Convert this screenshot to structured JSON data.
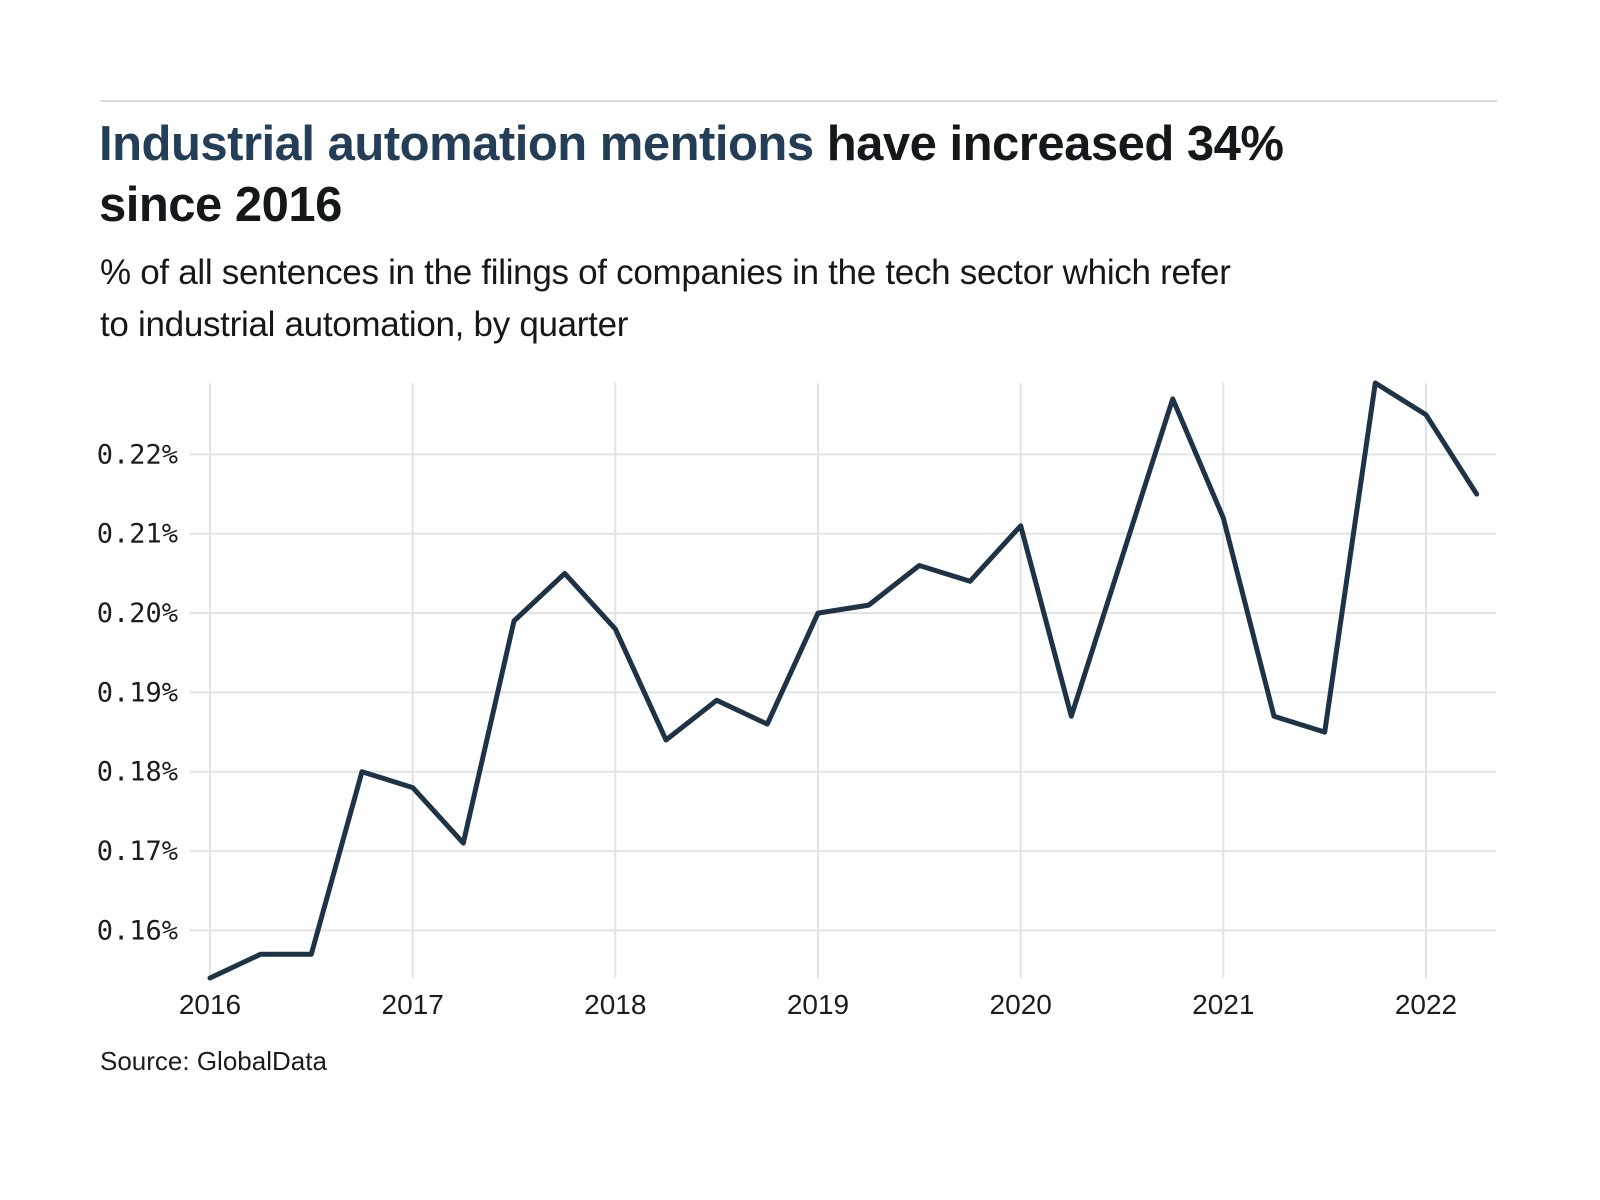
{
  "header": {
    "title_highlight": "Industrial automation mentions",
    "title_rest_line1": " have increased 34%",
    "title_line2": "since 2016",
    "subtitle_line1": "% of all sentences in the filings of companies in the tech sector which refer",
    "subtitle_line2": "to industrial automation, by quarter"
  },
  "footer": {
    "source": "Source: GlobalData"
  },
  "colors": {
    "title_highlight": "#253e57",
    "body_text": "#15181a",
    "line": "#1f3347",
    "gridline": "#e3e3e3",
    "divider": "#dcdcdc",
    "background": "#ffffff"
  },
  "chart_data": {
    "type": "line",
    "title": "Industrial automation mentions have increased 34% since 2016",
    "subtitle": "% of all sentences in the filings of companies in the tech sector which refer to industrial automation, by quarter",
    "source": "Source: GlobalData",
    "categories": [
      "2016 Q1",
      "2016 Q2",
      "2016 Q3",
      "2016 Q4",
      "2017 Q1",
      "2017 Q2",
      "2017 Q3",
      "2017 Q4",
      "2018 Q1",
      "2018 Q2",
      "2018 Q3",
      "2018 Q4",
      "2019 Q1",
      "2019 Q2",
      "2019 Q3",
      "2019 Q4",
      "2020 Q1",
      "2020 Q2",
      "2020 Q3",
      "2020 Q4",
      "2021 Q1",
      "2021 Q2",
      "2021 Q3",
      "2021 Q4",
      "2022 Q1",
      "2022 Q2"
    ],
    "values": [
      0.154,
      0.157,
      0.157,
      0.18,
      0.178,
      0.171,
      0.199,
      0.205,
      0.198,
      0.184,
      0.189,
      0.186,
      0.2,
      0.201,
      0.206,
      0.204,
      0.211,
      0.187,
      0.207,
      0.227,
      0.212,
      0.187,
      0.185,
      0.229,
      0.225,
      0.215
    ],
    "unit": "%",
    "x_tick_labels": [
      "2016",
      "2017",
      "2018",
      "2019",
      "2020",
      "2021",
      "2022"
    ],
    "y_tick_labels": [
      "0.16%",
      "0.17%",
      "0.18%",
      "0.19%",
      "0.20%",
      "0.21%",
      "0.22%"
    ],
    "y_tick_values": [
      0.16,
      0.17,
      0.18,
      0.19,
      0.2,
      0.21,
      0.22
    ],
    "ylim": [
      0.154,
      0.229
    ],
    "grid": true,
    "legend": false,
    "line_color": "#1f3347"
  }
}
